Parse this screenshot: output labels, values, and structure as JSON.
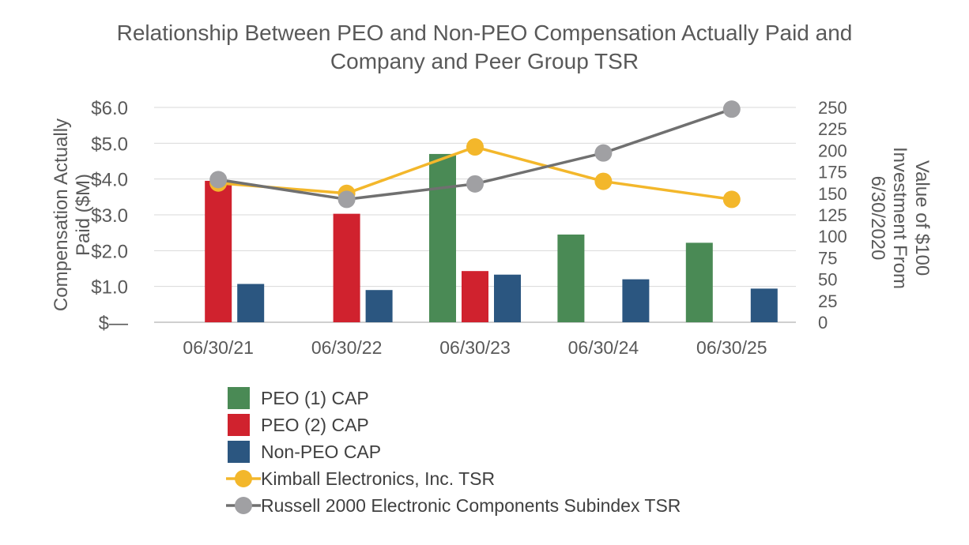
{
  "chart_data": {
    "type": "bar+line",
    "title_line1": "Relationship Between PEO and Non-PEO Compensation Actually Paid and",
    "title_line2": "Company and Peer Group TSR",
    "ylabel_left_line1": "Compensation Actually",
    "ylabel_left_line2": "Paid ($M)",
    "ylabel_right_line1": "Value of $100",
    "ylabel_right_line2": "Investment From",
    "ylabel_right_line3": "6/30/2020",
    "categories": [
      "06/30/21",
      "06/30/22",
      "06/30/23",
      "06/30/24",
      "06/30/25"
    ],
    "ylim_left": [
      0,
      6
    ],
    "yticks_left": [
      "$—",
      "$1.0",
      "$2.0",
      "$3.0",
      "$4.0",
      "$5.0",
      "$6.0"
    ],
    "ylim_right": [
      0,
      250
    ],
    "yticks_right": [
      "0",
      "25",
      "50",
      "75",
      "100",
      "125",
      "150",
      "175",
      "200",
      "225",
      "250"
    ],
    "bar_series": [
      {
        "name": "PEO (1) CAP",
        "color": "#4a8a55",
        "values": [
          null,
          null,
          4.7,
          2.45,
          2.22
        ]
      },
      {
        "name": "PEO (2) CAP",
        "color": "#d0222e",
        "values": [
          3.95,
          3.03,
          1.43,
          null,
          null
        ]
      },
      {
        "name": "Non-PEO CAP",
        "color": "#2b5680",
        "values": [
          1.07,
          0.9,
          1.33,
          1.2,
          0.94
        ]
      }
    ],
    "line_series": [
      {
        "name": "Kimball Electronics, Inc. TSR",
        "color": "#f3b72b",
        "values": [
          162,
          150,
          204,
          164,
          143
        ]
      },
      {
        "name": "Russell 2000 Electronic Components Subindex TSR",
        "color": "#707070",
        "marker_color": "#a0a0a3",
        "values": [
          166,
          143,
          161,
          197,
          248
        ]
      }
    ],
    "legend_position": "bottom",
    "grid": true
  }
}
